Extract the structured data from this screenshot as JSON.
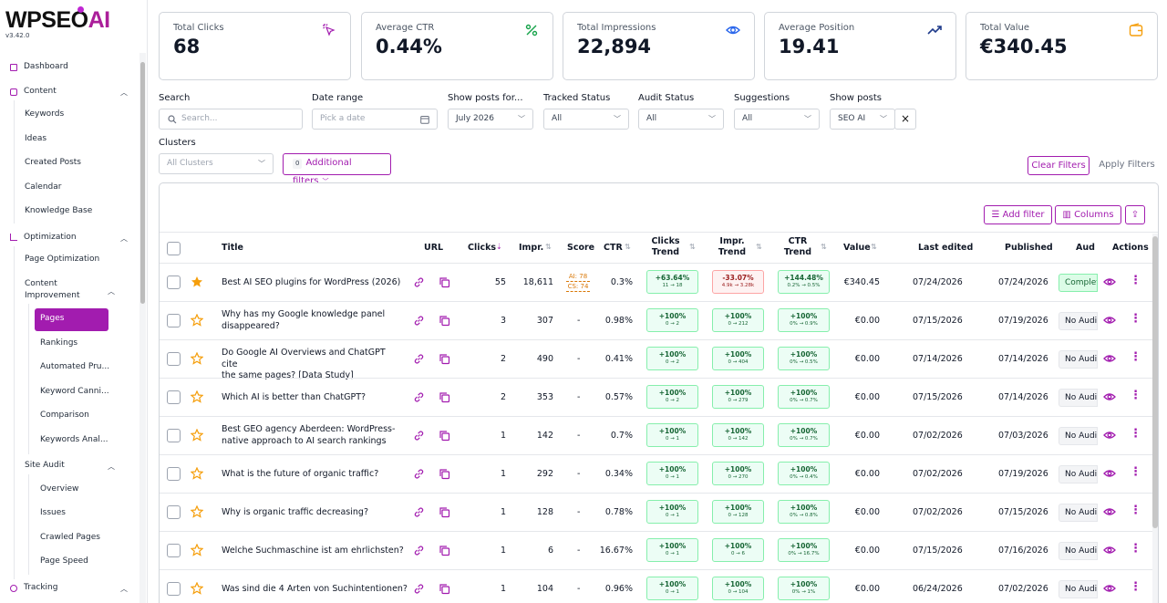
{
  "app": {
    "logo_text": "WPSEO",
    "logo_ai": "AI",
    "version": "v3.42.0"
  },
  "sidebar": {
    "dashboard": "Dashboard",
    "content": "Content",
    "keywords": "Keywords",
    "ideas": "Ideas",
    "created_posts": "Created Posts",
    "calendar": "Calendar",
    "knowledge_base": "Knowledge Base",
    "optimization": "Optimization",
    "page_optimization": "Page Optimization",
    "content_improvement_1": "Content",
    "content_improvement_2": "Improvement",
    "pages": "Pages",
    "rankings": "Rankings",
    "automated_pruning": "Automated Pru...",
    "keyword_cannibalization": "Keyword Canni...",
    "comparison": "Comparison",
    "keywords_analysis": "Keywords Anal...",
    "site_audit": "Site Audit",
    "overview": "Overview",
    "issues": "Issues",
    "crawled_pages": "Crawled Pages",
    "page_speed": "Page Speed",
    "tracking": "Tracking"
  },
  "stats": [
    {
      "label": "Total Clicks",
      "value": "68",
      "icon": "cursor-click-icon"
    },
    {
      "label": "Average CTR",
      "value": "0.44%",
      "icon": "percent-icon"
    },
    {
      "label": "Total Impressions",
      "value": "22,894",
      "icon": "eye-icon"
    },
    {
      "label": "Average Position",
      "value": "19.41",
      "icon": "trending-up-icon"
    },
    {
      "label": "Total Value",
      "value": "€340.45",
      "icon": "wallet-icon"
    }
  ],
  "filters": {
    "search_label": "Search",
    "search_placeholder": "Search...",
    "date_label": "Date range",
    "date_placeholder": "Pick a date",
    "show_for_label": "Show posts for...",
    "show_for_value": "July 2026",
    "tracked_label": "Tracked Status",
    "tracked_value": "All",
    "audit_label": "Audit Status",
    "audit_value": "All",
    "suggestions_label": "Suggestions",
    "suggestions_value": "All",
    "show_posts_label": "Show posts",
    "show_posts_value": "SEO AI",
    "clusters_label": "Clusters",
    "clusters_value": "All Clusters",
    "additional_count": "0",
    "additional_label": "Additional filters",
    "clear": "Clear Filters",
    "apply": "Apply Filters"
  },
  "table_toolbar": {
    "add_filter": "Add filter",
    "columns": "Columns"
  },
  "columns": {
    "title": "Title",
    "url": "URL",
    "clicks": "Clicks",
    "impr": "Impr.",
    "score": "Score",
    "ctr": "CTR",
    "clicks_trend_1": "Clicks",
    "clicks_trend_2": "Trend",
    "impr_trend_1": "Impr.",
    "impr_trend_2": "Trend",
    "ctr_trend_1": "CTR",
    "ctr_trend_2": "Trend",
    "value": "Value",
    "last_edited": "Last edited",
    "published": "Published",
    "audit": "Aud",
    "actions": "Actions"
  },
  "rows": [
    {
      "title1": "Best AI SEO plugins for WordPress (2026)",
      "title2": "",
      "clicks": "55",
      "impr": "18,611",
      "score1": "AI: 78",
      "score2": "CS: 74",
      "score": "",
      "ctr": "0.3%",
      "ct_p": "+63.64%",
      "ct_s": "11 → 18",
      "it_p": "-33.07%",
      "it_s": "4.9k → 3.28k",
      "rt_p": "+144.48%",
      "rt_s": "0.2% → 0.5%",
      "value": "€340.45",
      "edited": "07/24/2026",
      "published": "07/24/2026",
      "audit": "Complete",
      "starred": true,
      "it_neg": true
    },
    {
      "title1": "Why has my Google knowledge panel",
      "title2": "disappeared?",
      "clicks": "3",
      "impr": "307",
      "score": "-",
      "ctr": "0.98%",
      "ct_p": "+100%",
      "ct_s": "0 → 2",
      "it_p": "+100%",
      "it_s": "0 → 212",
      "rt_p": "+100%",
      "rt_s": "0% → 0.9%",
      "value": "€0.00",
      "edited": "07/15/2026",
      "published": "07/19/2026",
      "audit": "No Audit"
    },
    {
      "title1": "Do Google AI Overviews and ChatGPT cite",
      "title2": "the same pages? [Data Study]",
      "clicks": "2",
      "impr": "490",
      "score": "-",
      "ctr": "0.41%",
      "ct_p": "+100%",
      "ct_s": "0 → 2",
      "it_p": "+100%",
      "it_s": "0 → 404",
      "rt_p": "+100%",
      "rt_s": "0% → 0.5%",
      "value": "€0.00",
      "edited": "07/14/2026",
      "published": "07/14/2026",
      "audit": "No Audit"
    },
    {
      "title1": "Which AI is better than ChatGPT?",
      "title2": "",
      "clicks": "2",
      "impr": "353",
      "score": "-",
      "ctr": "0.57%",
      "ct_p": "+100%",
      "ct_s": "0 → 2",
      "it_p": "+100%",
      "it_s": "0 → 279",
      "rt_p": "+100%",
      "rt_s": "0% → 0.7%",
      "value": "€0.00",
      "edited": "07/15/2026",
      "published": "07/14/2026",
      "audit": "No Audit"
    },
    {
      "title1": "Best GEO agency Aberdeen: WordPress-",
      "title2": "native approach to AI search rankings",
      "clicks": "1",
      "impr": "142",
      "score": "-",
      "ctr": "0.7%",
      "ct_p": "+100%",
      "ct_s": "0 → 1",
      "it_p": "+100%",
      "it_s": "0 → 142",
      "rt_p": "+100%",
      "rt_s": "0% → 0.7%",
      "value": "€0.00",
      "edited": "07/02/2026",
      "published": "07/03/2026",
      "audit": "No Audit"
    },
    {
      "title1": "What is the future of organic traffic?",
      "title2": "",
      "clicks": "1",
      "impr": "292",
      "score": "-",
      "ctr": "0.34%",
      "ct_p": "+100%",
      "ct_s": "0 → 1",
      "it_p": "+100%",
      "it_s": "0 → 270",
      "rt_p": "+100%",
      "rt_s": "0% → 0.4%",
      "value": "€0.00",
      "edited": "07/02/2026",
      "published": "07/19/2026",
      "audit": "No Audit"
    },
    {
      "title1": "Why is organic traffic decreasing?",
      "title2": "",
      "clicks": "1",
      "impr": "128",
      "score": "-",
      "ctr": "0.78%",
      "ct_p": "+100%",
      "ct_s": "0 → 1",
      "it_p": "+100%",
      "it_s": "0 → 128",
      "rt_p": "+100%",
      "rt_s": "0% → 0.8%",
      "value": "€0.00",
      "edited": "07/02/2026",
      "published": "07/15/2026",
      "audit": "No Audit"
    },
    {
      "title1": "Welche Suchmaschine ist am ehrlichsten?",
      "title2": "",
      "clicks": "1",
      "impr": "6",
      "score": "-",
      "ctr": "16.67%",
      "ct_p": "+100%",
      "ct_s": "0 → 1",
      "it_p": "+100%",
      "it_s": "0 → 6",
      "rt_p": "+100%",
      "rt_s": "0% → 16.7%",
      "value": "€0.00",
      "edited": "07/15/2026",
      "published": "07/16/2026",
      "audit": "No Audit"
    },
    {
      "title1": "Was sind die 4 Arten von Suchintentionen?",
      "title2": "",
      "clicks": "1",
      "impr": "104",
      "score": "-",
      "ctr": "0.96%",
      "ct_p": "+100%",
      "ct_s": "0 → 1",
      "it_p": "+100%",
      "it_s": "0 → 104",
      "rt_p": "+100%",
      "rt_s": "0% → 1%",
      "value": "€0.00",
      "edited": "06/24/2026",
      "published": "07/02/2026",
      "audit": "No Audit"
    }
  ],
  "colors": {
    "accent": "#a21caf",
    "positive": "#166534",
    "negative": "#991b1b",
    "star": "#f59e0b"
  }
}
